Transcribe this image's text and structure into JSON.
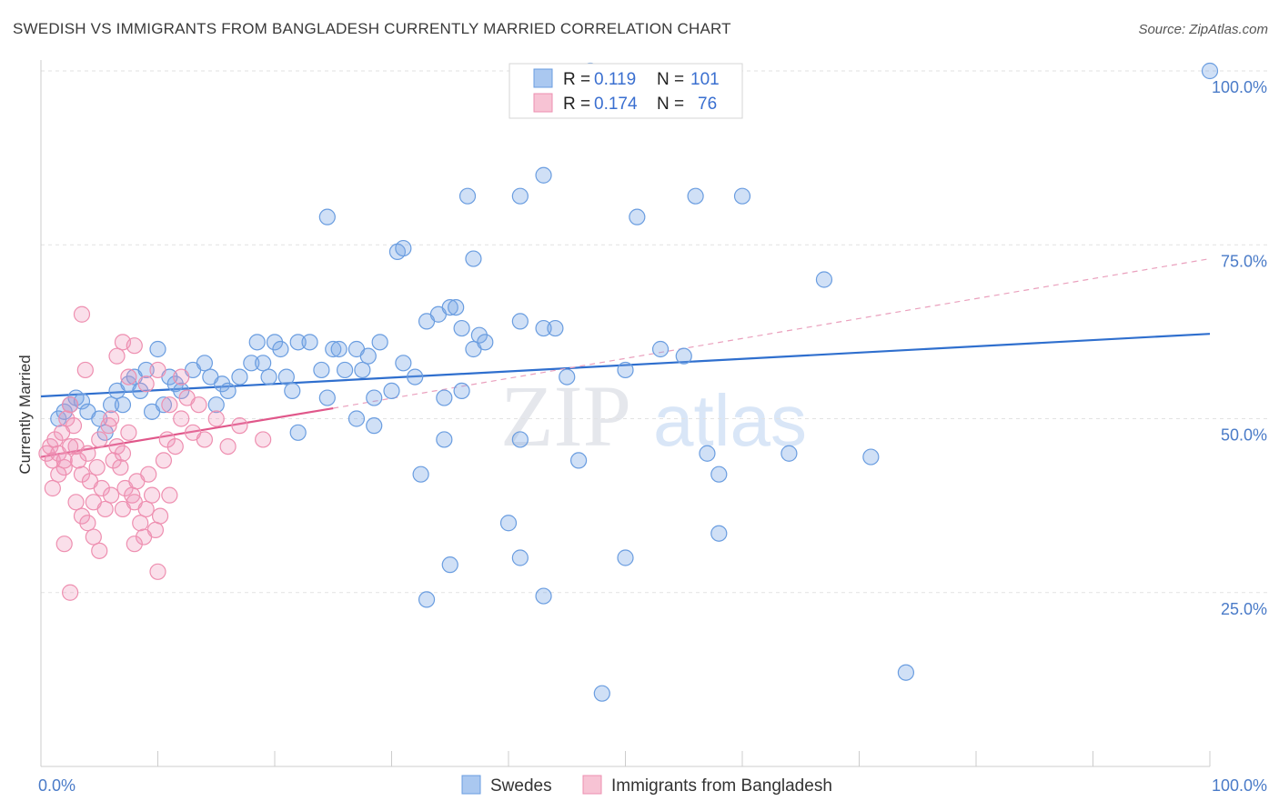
{
  "title": "SWEDISH VS IMMIGRANTS FROM BANGLADESH CURRENTLY MARRIED CORRELATION CHART",
  "source": "Source: ZipAtlas.com",
  "colors": {
    "blue": "#6a9de0",
    "blue_line": "#2f6fce",
    "pink": "#ee8fb0",
    "pink_line": "#e0578a",
    "axis_text": "#4a7bc8"
  },
  "chart_data": {
    "type": "scatter",
    "ylabel": "Currently Married",
    "xlim": [
      0,
      100
    ],
    "ylim": [
      0,
      100
    ],
    "x_tick_labels": [
      "0.0%",
      "100.0%"
    ],
    "y_tick_values": [
      25,
      50,
      75,
      100
    ],
    "y_tick_labels": [
      "25.0%",
      "50.0%",
      "75.0%",
      "100.0%"
    ],
    "legend": {
      "rows": [
        {
          "r_label": "R =",
          "r_value": "0.119",
          "n_label": "N =",
          "n_value": "101"
        },
        {
          "r_label": "R =",
          "r_value": "0.174",
          "n_label": "N =",
          "n_value": "76"
        }
      ]
    },
    "series": [
      {
        "name": "Swedes",
        "trend": {
          "x0": 0,
          "y0": 53.2,
          "x1": 100,
          "y1": 62.2
        },
        "points": [
          [
            1.5,
            50
          ],
          [
            2,
            51
          ],
          [
            2.5,
            52
          ],
          [
            3,
            53
          ],
          [
            3.5,
            52.5
          ],
          [
            4,
            51
          ],
          [
            5,
            50
          ],
          [
            5.5,
            48
          ],
          [
            6,
            52
          ],
          [
            6.5,
            54
          ],
          [
            7,
            52
          ],
          [
            7.5,
            55
          ],
          [
            8,
            56
          ],
          [
            8.5,
            54
          ],
          [
            9,
            57
          ],
          [
            9.5,
            51
          ],
          [
            10,
            60
          ],
          [
            10.5,
            52
          ],
          [
            11,
            56
          ],
          [
            11.5,
            55
          ],
          [
            12,
            54
          ],
          [
            13,
            57
          ],
          [
            14,
            58
          ],
          [
            14.5,
            56
          ],
          [
            15,
            52
          ],
          [
            15.5,
            55
          ],
          [
            16,
            54
          ],
          [
            17,
            56
          ],
          [
            18,
            58
          ],
          [
            18.5,
            61
          ],
          [
            19,
            58
          ],
          [
            19.5,
            56
          ],
          [
            20,
            61
          ],
          [
            20.5,
            60
          ],
          [
            21,
            56
          ],
          [
            21.5,
            54
          ],
          [
            22,
            61
          ],
          [
            23,
            61
          ],
          [
            24,
            57
          ],
          [
            24.5,
            53
          ],
          [
            25,
            60
          ],
          [
            25.5,
            60
          ],
          [
            26,
            57
          ],
          [
            27,
            60
          ],
          [
            27.5,
            57
          ],
          [
            28,
            59
          ],
          [
            28.5,
            53
          ],
          [
            29,
            61
          ],
          [
            30,
            54
          ],
          [
            31,
            58
          ],
          [
            24.5,
            79
          ],
          [
            30.5,
            74
          ],
          [
            31,
            74.5
          ],
          [
            33,
            64
          ],
          [
            34,
            65
          ],
          [
            35,
            66
          ],
          [
            36,
            63
          ],
          [
            35.5,
            66
          ],
          [
            37,
            60
          ],
          [
            37.5,
            62
          ],
          [
            27,
            50
          ],
          [
            28.5,
            49
          ],
          [
            36,
            54
          ],
          [
            32,
            56
          ],
          [
            34.5,
            53
          ],
          [
            38,
            61
          ],
          [
            41,
            64
          ],
          [
            43,
            63
          ],
          [
            44,
            63
          ],
          [
            45,
            56
          ],
          [
            36.5,
            82
          ],
          [
            37,
            73
          ],
          [
            41,
            82
          ],
          [
            43,
            85
          ],
          [
            47,
            100
          ],
          [
            51,
            79
          ],
          [
            56,
            82
          ],
          [
            60,
            82
          ],
          [
            67,
            70
          ],
          [
            100,
            100
          ],
          [
            32.5,
            42
          ],
          [
            34.5,
            47
          ],
          [
            41,
            47
          ],
          [
            46,
            44
          ],
          [
            50,
            57
          ],
          [
            53,
            60
          ],
          [
            55,
            59
          ],
          [
            57,
            45
          ],
          [
            58,
            42
          ],
          [
            64,
            45
          ],
          [
            40,
            35
          ],
          [
            41,
            30
          ],
          [
            43,
            24.5
          ],
          [
            35,
            29
          ],
          [
            33,
            24
          ],
          [
            50,
            30
          ],
          [
            58,
            33.5
          ],
          [
            48,
            10.5
          ],
          [
            71,
            44.5
          ],
          [
            74,
            13.5
          ],
          [
            22,
            48
          ]
        ]
      },
      {
        "name": "Immigrants from Bangladesh",
        "trend": {
          "x0": 0,
          "y0": 44.5,
          "x1": 25,
          "y1": 51.5,
          "dash_x1": 100,
          "dash_y1": 73
        },
        "points": [
          [
            0.5,
            45
          ],
          [
            0.8,
            46
          ],
          [
            1,
            44
          ],
          [
            1.2,
            47
          ],
          [
            1.5,
            45
          ],
          [
            1.8,
            48
          ],
          [
            2,
            43
          ],
          [
            2.2,
            50
          ],
          [
            2.5,
            52
          ],
          [
            2.8,
            49
          ],
          [
            3,
            46
          ],
          [
            3.2,
            44
          ],
          [
            3.5,
            42
          ],
          [
            3.8,
            57
          ],
          [
            4,
            45
          ],
          [
            4.2,
            41
          ],
          [
            4.5,
            38
          ],
          [
            4.8,
            43
          ],
          [
            5,
            47
          ],
          [
            5.2,
            40
          ],
          [
            5.5,
            37
          ],
          [
            5.8,
            49
          ],
          [
            6,
            50
          ],
          [
            6.2,
            44
          ],
          [
            6.5,
            46
          ],
          [
            6.8,
            43
          ],
          [
            7,
            45
          ],
          [
            7.2,
            40
          ],
          [
            7.5,
            48
          ],
          [
            7.8,
            39
          ],
          [
            8,
            38
          ],
          [
            8.2,
            41
          ],
          [
            8.5,
            35
          ],
          [
            8.8,
            33
          ],
          [
            9,
            37
          ],
          [
            9.2,
            42
          ],
          [
            9.5,
            39
          ],
          [
            9.8,
            34
          ],
          [
            10,
            28
          ],
          [
            10.2,
            36
          ],
          [
            10.5,
            44
          ],
          [
            10.8,
            47
          ],
          [
            11,
            39
          ],
          [
            11.5,
            46
          ],
          [
            12,
            56
          ],
          [
            12.5,
            53
          ],
          [
            13,
            48
          ],
          [
            13.5,
            52
          ],
          [
            14,
            47
          ],
          [
            15,
            50
          ],
          [
            3.5,
            65
          ],
          [
            6.5,
            59
          ],
          [
            7,
            61
          ],
          [
            7.5,
            56
          ],
          [
            8,
            60.5
          ],
          [
            9,
            55
          ],
          [
            10,
            57
          ],
          [
            11,
            52
          ],
          [
            12,
            50
          ],
          [
            16,
            46
          ],
          [
            2,
            32
          ],
          [
            2.5,
            25
          ],
          [
            3,
            38
          ],
          [
            3.5,
            36
          ],
          [
            4,
            35
          ],
          [
            4.5,
            33
          ],
          [
            5,
            31
          ],
          [
            6,
            39
          ],
          [
            7,
            37
          ],
          [
            8,
            32
          ],
          [
            1,
            40
          ],
          [
            1.5,
            42
          ],
          [
            2,
            44
          ],
          [
            2.5,
            46
          ],
          [
            17,
            49
          ],
          [
            19,
            47
          ]
        ]
      }
    ],
    "bottom_legend": [
      "Swedes",
      "Immigrants from Bangladesh"
    ]
  }
}
